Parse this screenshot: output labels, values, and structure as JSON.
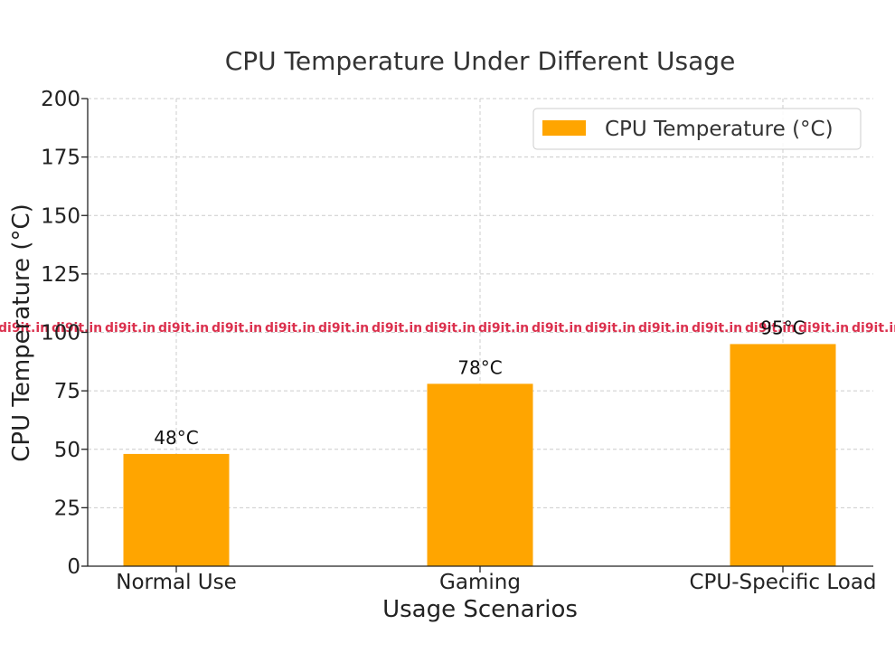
{
  "chart_data": {
    "type": "bar",
    "title": "CPU Temperature Under Different Usage",
    "xlabel": "Usage Scenarios",
    "ylabel": "CPU Temperature (°C)",
    "categories": [
      "Normal Use",
      "Gaming",
      "CPU-Specific Load"
    ],
    "series": [
      {
        "name": "CPU Temperature (°C)",
        "values": [
          48,
          78,
          95
        ],
        "labels": [
          "48°C",
          "78°C",
          "95°C"
        ]
      }
    ],
    "ylim": [
      0,
      200
    ],
    "yticks": [
      0,
      25,
      50,
      75,
      100,
      125,
      150,
      175,
      200
    ],
    "grid": true,
    "legend_position": "top-right",
    "colors": {
      "bar": "#FFA500"
    }
  },
  "watermark": {
    "text": "di9it.in"
  }
}
